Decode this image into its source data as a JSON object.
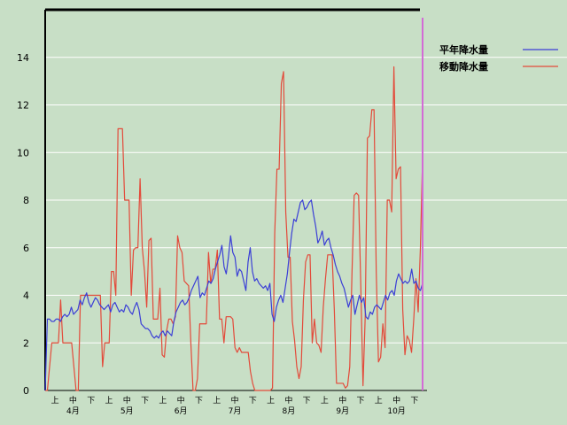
{
  "chart_data": {
    "type": "line",
    "ylim": [
      0,
      16
    ],
    "yticks": [
      0,
      2,
      4,
      6,
      8,
      10,
      12,
      14
    ],
    "x_period_labels": [
      "上",
      "中",
      "下",
      "上",
      "中",
      "下",
      "上",
      "中",
      "下",
      "上",
      "中",
      "下",
      "上",
      "中",
      "下",
      "上",
      "中",
      "下",
      "上",
      "中",
      "下"
    ],
    "x_month_labels": [
      "4月",
      "5月",
      "6月",
      "7月",
      "8月",
      "9月",
      "10月"
    ],
    "grid": true,
    "legend_position": "top-right",
    "series": [
      {
        "name": "平年降水量",
        "color": "#3b3fd6",
        "values": [
          0,
          3.0,
          3.0,
          2.9,
          2.9,
          3.0,
          3.0,
          2.9,
          3.1,
          3.2,
          3.1,
          3.2,
          3.5,
          3.2,
          3.3,
          3.4,
          3.8,
          3.6,
          3.9,
          4.1,
          3.7,
          3.5,
          3.7,
          3.9,
          3.8,
          3.6,
          3.5,
          3.4,
          3.5,
          3.6,
          3.3,
          3.6,
          3.7,
          3.5,
          3.3,
          3.4,
          3.3,
          3.6,
          3.5,
          3.3,
          3.2,
          3.5,
          3.7,
          3.4,
          2.8,
          2.7,
          2.6,
          2.6,
          2.5,
          2.3,
          2.2,
          2.3,
          2.2,
          2.4,
          2.5,
          2.3,
          2.5,
          2.4,
          2.3,
          2.9,
          3.3,
          3.5,
          3.7,
          3.8,
          3.6,
          3.7,
          3.9,
          4.2,
          4.4,
          4.6,
          4.8,
          3.9,
          4.1,
          4.0,
          4.3,
          4.6,
          4.5,
          4.7,
          5.1,
          5.4,
          5.7,
          6.1,
          5.2,
          4.9,
          5.6,
          6.5,
          5.8,
          5.6,
          4.8,
          5.1,
          5.0,
          4.6,
          4.2,
          5.4,
          6.0,
          5.0,
          4.6,
          4.7,
          4.5,
          4.4,
          4.3,
          4.4,
          4.2,
          4.5,
          3.2,
          2.9,
          3.5,
          3.8,
          4.0,
          3.7,
          4.3,
          4.9,
          5.8,
          6.6,
          7.2,
          7.1,
          7.5,
          7.9,
          8.0,
          7.6,
          7.7,
          7.9,
          8.0,
          7.4,
          6.9,
          6.2,
          6.4,
          6.7,
          6.1,
          6.3,
          6.4,
          6.0,
          5.7,
          5.3,
          5.0,
          4.8,
          4.5,
          4.3,
          3.9,
          3.5,
          3.8,
          4.0,
          3.2,
          3.6,
          4.0,
          3.7,
          3.9,
          3.1,
          3.0,
          3.3,
          3.2,
          3.5,
          3.6,
          3.5,
          3.4,
          3.7,
          4.0,
          3.8,
          4.1,
          4.2,
          4.0,
          4.6,
          4.9,
          4.7,
          4.5,
          4.6,
          4.5,
          4.6,
          5.1,
          4.5,
          4.6,
          4.3,
          4.2,
          4.5
        ]
      },
      {
        "name": "移動降水量",
        "color": "#e34a3a",
        "values": [
          0,
          0,
          1.0,
          2.0,
          2.0,
          2.0,
          2.0,
          3.8,
          2.0,
          2.0,
          2.0,
          2.0,
          2.0,
          1.0,
          0,
          0,
          4.0,
          4.0,
          4.0,
          4.0,
          4.0,
          4.0,
          4.0,
          4.0,
          4.0,
          4.0,
          1.0,
          2.0,
          2.0,
          2.0,
          5.0,
          5.0,
          4.0,
          11.0,
          11.0,
          11.0,
          8.0,
          8.0,
          8.0,
          4.0,
          5.9,
          6.0,
          6.0,
          8.9,
          6.0,
          5.0,
          3.5,
          6.3,
          6.4,
          3.0,
          3.0,
          3.0,
          4.3,
          1.5,
          1.4,
          2.5,
          3.0,
          3.0,
          2.8,
          3.1,
          6.5,
          6.0,
          5.8,
          4.6,
          4.5,
          4.4,
          2.0,
          0,
          0,
          0.5,
          2.8,
          2.8,
          2.8,
          2.8,
          5.8,
          4.5,
          5.1,
          5.1,
          5.9,
          3.0,
          3.0,
          2.0,
          3.1,
          3.1,
          3.1,
          3.0,
          1.8,
          1.6,
          1.8,
          1.6,
          1.6,
          1.6,
          1.6,
          0.8,
          0.3,
          0,
          0,
          0,
          0,
          0,
          0,
          0,
          0,
          0.1,
          6.6,
          9.3,
          9.3,
          12.9,
          13.4,
          7.5,
          5.6,
          5.6,
          2.9,
          2.1,
          1.0,
          0.5,
          1.0,
          3.8,
          5.4,
          5.7,
          5.7,
          2.0,
          3.0,
          2.0,
          1.9,
          1.6,
          3.5,
          4.7,
          5.7,
          5.7,
          5.7,
          3.4,
          0.3,
          0.3,
          0.3,
          0.3,
          0.1,
          0.2,
          1.0,
          4.9,
          8.2,
          8.3,
          8.2,
          4.4,
          0.2,
          3.1,
          10.6,
          10.7,
          11.8,
          11.8,
          5.0,
          1.2,
          1.4,
          2.8,
          1.8,
          8.0,
          8.0,
          7.5,
          13.6,
          8.9,
          9.3,
          9.4,
          3.4,
          1.5,
          2.3,
          2.1,
          1.6,
          3.0,
          4.7,
          3.3,
          6.0,
          9.8
        ]
      }
    ]
  }
}
